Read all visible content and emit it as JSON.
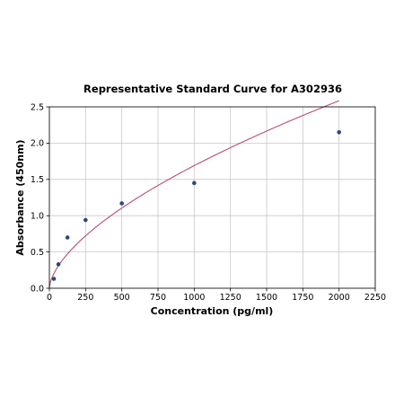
{
  "chart_data": {
    "type": "scatter",
    "title": "Representative Standard Curve for A302936",
    "xlabel": "Concentration (pg/ml)",
    "ylabel": "Absorbance (450nm)",
    "xlim": [
      0,
      2250
    ],
    "ylim": [
      0,
      2.5
    ],
    "x_ticks": [
      "0",
      "250",
      "500",
      "750",
      "1000",
      "1250",
      "1500",
      "1750",
      "2000",
      "2250"
    ],
    "y_ticks": [
      "0.0",
      "0.5",
      "1.0",
      "1.5",
      "2.0",
      "2.5"
    ],
    "grid": true,
    "series": [
      {
        "type": "scatter",
        "x": [
          31.25,
          62.5,
          125,
          250,
          500,
          1000,
          2000
        ],
        "y": [
          0.13,
          0.33,
          0.7,
          0.94,
          1.17,
          1.45,
          2.15
        ]
      },
      {
        "type": "line",
        "fit": "power",
        "x_range": [
          0,
          2000
        ]
      }
    ],
    "colors": {
      "points": "#2a4a78",
      "curve": "#b5506a"
    }
  }
}
